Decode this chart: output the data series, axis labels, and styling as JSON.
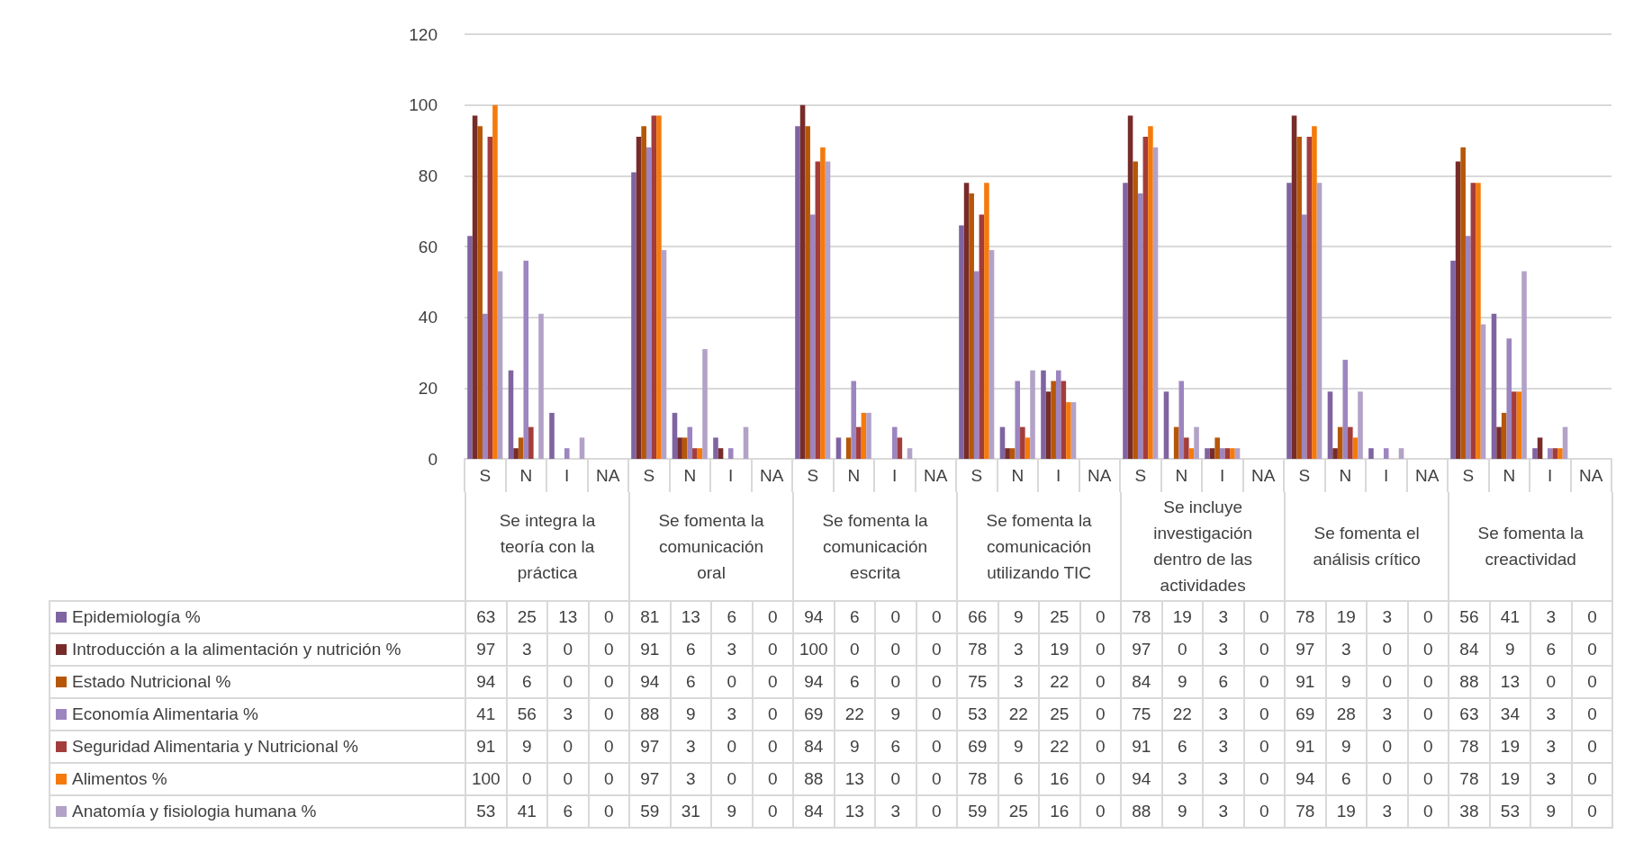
{
  "chart_data": {
    "type": "bar",
    "categories": [
      "S",
      "N",
      "I",
      "NA",
      "S",
      "N",
      "I",
      "NA",
      "S",
      "N",
      "I",
      "NA",
      "S",
      "N",
      "I",
      "NA",
      "S",
      "N",
      "I",
      "NA",
      "S",
      "N",
      "I",
      "NA",
      "S",
      "N",
      "I",
      "NA"
    ],
    "annotations": [
      "Se integra la teoría con la práctica",
      "Se fomenta la comunicación oral",
      "Se fomenta la comunicación escrita",
      "Se fomenta la comunicación utilizando TIC",
      "Se incluye investigación dentro de las actividades",
      "Se fomenta el análisis crítico",
      "Se fomenta la creactividad"
    ],
    "series": [
      {
        "name": "Epidemiología  %",
        "color": "#8064a2",
        "values": [
          63,
          25,
          13,
          0,
          81,
          13,
          6,
          0,
          94,
          6,
          0,
          0,
          66,
          9,
          25,
          0,
          78,
          19,
          3,
          0,
          78,
          19,
          3,
          0,
          56,
          41,
          3,
          0
        ]
      },
      {
        "name": "Introducción a la alimentación y nutrición %",
        "color": "#772c2a",
        "values": [
          97,
          3,
          0,
          0,
          91,
          6,
          3,
          0,
          100,
          0,
          0,
          0,
          78,
          3,
          19,
          0,
          97,
          0,
          3,
          0,
          97,
          3,
          0,
          0,
          84,
          9,
          6,
          0
        ]
      },
      {
        "name": "Estado Nutricional  %",
        "color": "#b65708",
        "values": [
          94,
          6,
          0,
          0,
          94,
          6,
          0,
          0,
          94,
          6,
          0,
          0,
          75,
          3,
          22,
          0,
          84,
          9,
          6,
          0,
          91,
          9,
          0,
          0,
          88,
          13,
          0,
          0
        ]
      },
      {
        "name": "Economía Alimentaria  %",
        "color": "#9c85c0",
        "values": [
          41,
          56,
          3,
          0,
          88,
          9,
          3,
          0,
          69,
          22,
          9,
          0,
          53,
          22,
          25,
          0,
          75,
          22,
          3,
          0,
          69,
          28,
          3,
          0,
          63,
          34,
          3,
          0
        ]
      },
      {
        "name": "Seguridad Alimentaria y Nutricional  %",
        "color": "#a33d3b",
        "values": [
          91,
          9,
          0,
          0,
          97,
          3,
          0,
          0,
          84,
          9,
          6,
          0,
          69,
          9,
          22,
          0,
          91,
          6,
          3,
          0,
          91,
          9,
          0,
          0,
          78,
          19,
          3,
          0
        ]
      },
      {
        "name": "Alimentos  %",
        "color": "#f57a0c",
        "values": [
          100,
          0,
          0,
          0,
          97,
          3,
          0,
          0,
          88,
          13,
          0,
          0,
          78,
          6,
          16,
          0,
          94,
          3,
          3,
          0,
          94,
          6,
          0,
          0,
          78,
          19,
          3,
          0
        ]
      },
      {
        "name": "Anatomía y fisiologia humana  %",
        "color": "#b3a2c7",
        "values": [
          53,
          41,
          6,
          0,
          59,
          31,
          9,
          0,
          84,
          13,
          3,
          0,
          59,
          25,
          16,
          0,
          88,
          9,
          3,
          0,
          78,
          19,
          3,
          0,
          38,
          53,
          9,
          0
        ]
      }
    ],
    "ylim": [
      0,
      120
    ],
    "yticks": [
      0,
      20,
      40,
      60,
      80,
      100,
      120
    ],
    "grid": "y",
    "legend": "bottom left",
    "data_labels": true
  }
}
